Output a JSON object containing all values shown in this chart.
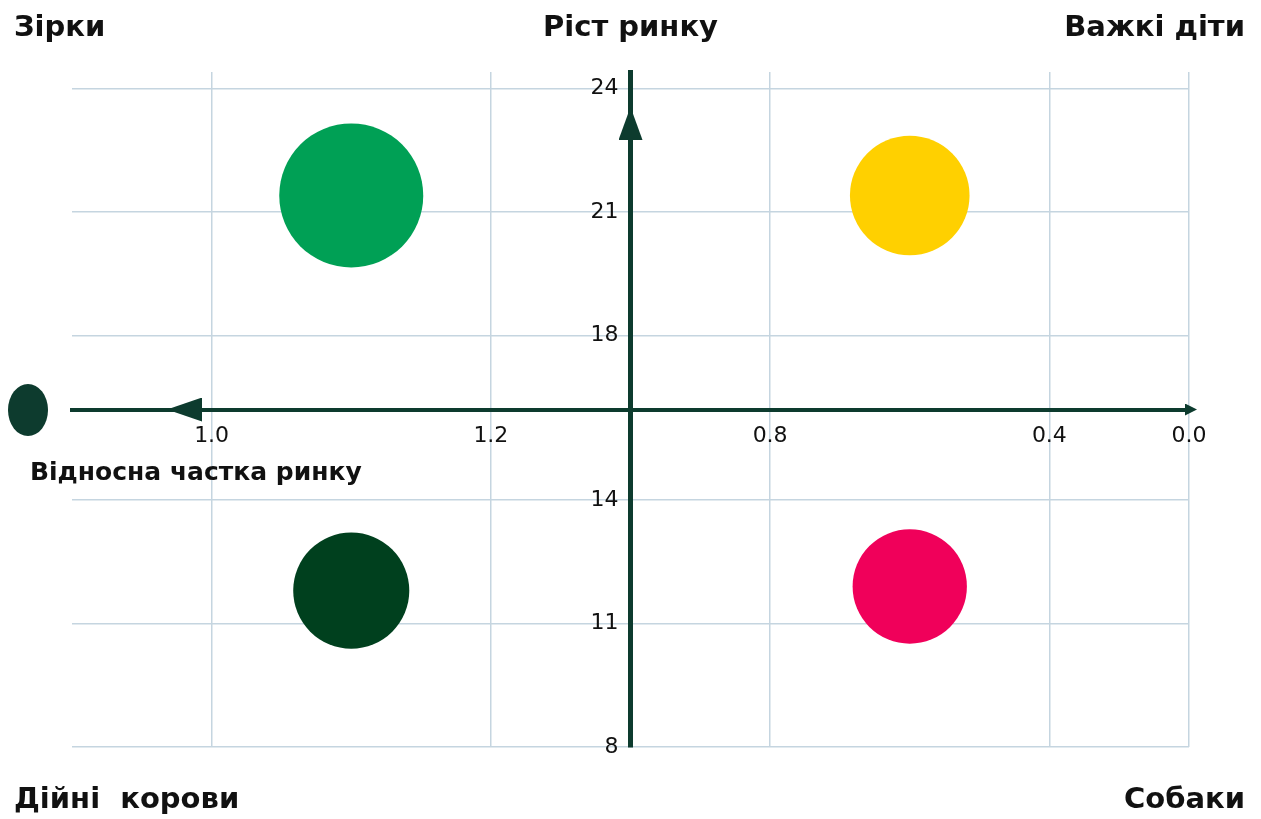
{
  "chart_data": {
    "type": "bubble",
    "xlabel": "Відносна частка ринку",
    "ylabel": "Ріст ринку",
    "annotations": [
      "Зірки",
      "Важкі діти",
      "Дійні  корови",
      "Собаки"
    ],
    "categories": [
      null,
      "1.0",
      null,
      "1.2",
      null,
      "0.8",
      null,
      "0.4",
      "0.0"
    ],
    "series": [
      {
        "values": [
          null,
          null,
          21.4,
          null,
          null,
          null,
          21.4,
          null,
          null
        ],
        "sizes": [
          null,
          null,
          1,
          null,
          null,
          null,
          0.69,
          null,
          null
        ],
        "colors": [
          null,
          null,
          "#00a055",
          null,
          null,
          null,
          "#ffd000",
          null,
          null
        ]
      },
      {
        "values": [
          null,
          null,
          11.8,
          null,
          null,
          null,
          11.9,
          null,
          null
        ],
        "sizes": [
          null,
          null,
          0.65,
          null,
          null,
          null,
          0.63,
          null,
          null
        ],
        "colors": [
          null,
          null,
          "#00401e",
          null,
          null,
          null,
          "#f0005a",
          null,
          null
        ]
      }
    ],
    "ylim": [
      8,
      24.4
    ],
    "yticks": [
      8,
      11,
      14,
      18,
      21,
      24
    ],
    "grid": true,
    "legend": false
  }
}
